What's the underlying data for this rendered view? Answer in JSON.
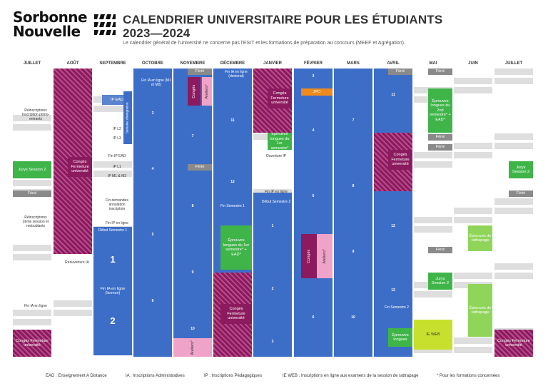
{
  "header": {
    "logo_line1": "Sorbonne",
    "logo_line2": "Nouvelle",
    "title_line1": "CALENDRIER UNIVERSITAIRE POUR LES ÉTUDIANTS",
    "title_line2": "2023—2024",
    "subtitle": "Le calendrier général de l'université ne concerne pas l'ESIT et les formations de préparation au concours (MEEF et Agrégation)."
  },
  "months": [
    "JUILLET",
    "AOÛT",
    "SEPTEMBRE",
    "OCTOBRE",
    "NOVEMBRE",
    "DÉCEMBRE",
    "JANVIER",
    "FÉVRIER",
    "MARS",
    "AVRIL",
    "MAI",
    "JUIN",
    "JUILLET"
  ],
  "events": {
    "ia_reinscriptions": "Réinscriptions Inscription primo-entrants",
    "jurys_s2": "Jurys Session 2",
    "ferie": "Férié",
    "reinscriptions_2e": "Réinscriptions 2ème session et redoublants",
    "fin_ia_ligne": "Fin IA en ligne",
    "conges_fermeture": "Congés Fermeture université",
    "reouverture_ia": "Réouverture IA",
    "ip_ead": "IP EAD",
    "ip_l2": "IP L2",
    "ip_l3": "IP L3",
    "fin_ip_ead": "Fin IP EAD",
    "ip_l1": "IP L1",
    "ip_m1m2": "IP M1 & M2",
    "fin_demandes": "Fin demandes annulation inscription",
    "fin_ip_ligne": "Fin IP en ligne",
    "debut_s1": "Début Semestre 1",
    "semaine_integration": "Semaine d'intégration",
    "fin_ia_m1m2": "Fin IA en ligne (M1 et M2)",
    "fin_ia_licence": "Fin IA en ligne (licence)",
    "conges": "Congés",
    "ateliers": "Ateliers*",
    "fin_ia_doctorat": "Fin IA en ligne (doctorat)",
    "fin_s1": "Fin Semestre 1",
    "epreuves_s1": "Épreuves longues du 1er semestre* + EAD*",
    "epreuves_longues_s1": "Épreuves longues du 1er semestre*",
    "ouverture_ip": "Ouverture IP",
    "debut_s2": "Début Semestre 2",
    "jpo": "JPO",
    "epreuves_s2": "Épreuves longues du 2nd semestre* + EAD*",
    "epreuves_rattrapage": "Épreuves de rattrapage",
    "fin_s2": "Fin Semestre 2",
    "epreuves_longues": "Épreuves longues",
    "ie_web": "IE WEB"
  },
  "weeks": {
    "w1": "1",
    "w2": "2",
    "w3": "3",
    "w4": "4",
    "w5": "5",
    "w6": "6",
    "w7": "7",
    "w8": "8",
    "w9": "9",
    "w10": "10",
    "w11": "11",
    "w12": "12",
    "w13": "13"
  },
  "footer": {
    "ead": "EAD : Enseignement A Distance",
    "ia": "IA : Inscriptions Administratives",
    "ip": "IP : Inscriptions Pédagogiques",
    "ieweb": "IE WEB : Inscriptions en ligne aux examens de la session de rattrapage",
    "note": "* Pour les formations concernées"
  },
  "colors": {
    "blue": "#3d6ec7",
    "green": "#3fb549",
    "purple": "#8b1a5e",
    "pink": "#f0a3c8",
    "orange": "#f08a1c",
    "lime": "#c7df2d",
    "grey": "#8a8a8a"
  }
}
